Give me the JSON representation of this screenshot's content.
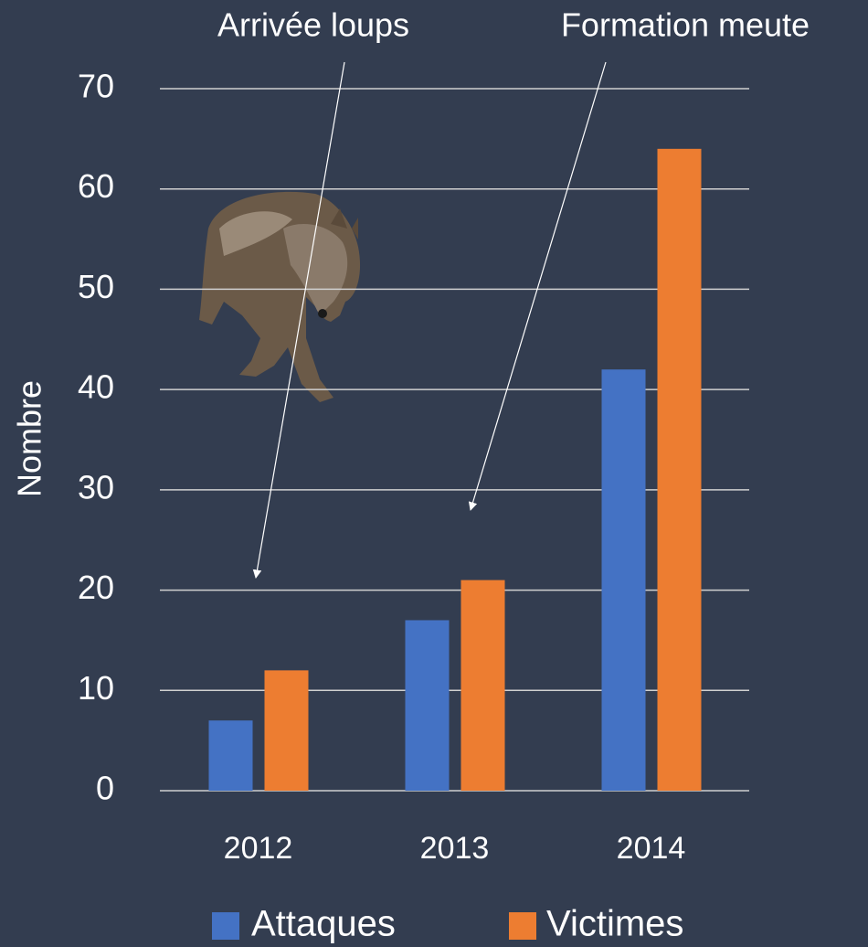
{
  "chart_data": {
    "type": "bar",
    "y_label": "Nombre",
    "categories": [
      "2012",
      "2013",
      "2014"
    ],
    "series": [
      {
        "name": "Attaques",
        "color": "#4472c4",
        "values": [
          7,
          17,
          42
        ]
      },
      {
        "name": "Victimes",
        "color": "#ed7d31",
        "values": [
          12,
          21,
          64
        ]
      }
    ],
    "ylim": [
      0,
      70
    ],
    "yticks": [
      0,
      10,
      20,
      30,
      40,
      50,
      60,
      70
    ],
    "grid": true,
    "legend": "bottom",
    "annotations": [
      "Arrivée loups",
      "Formation meute"
    ]
  }
}
